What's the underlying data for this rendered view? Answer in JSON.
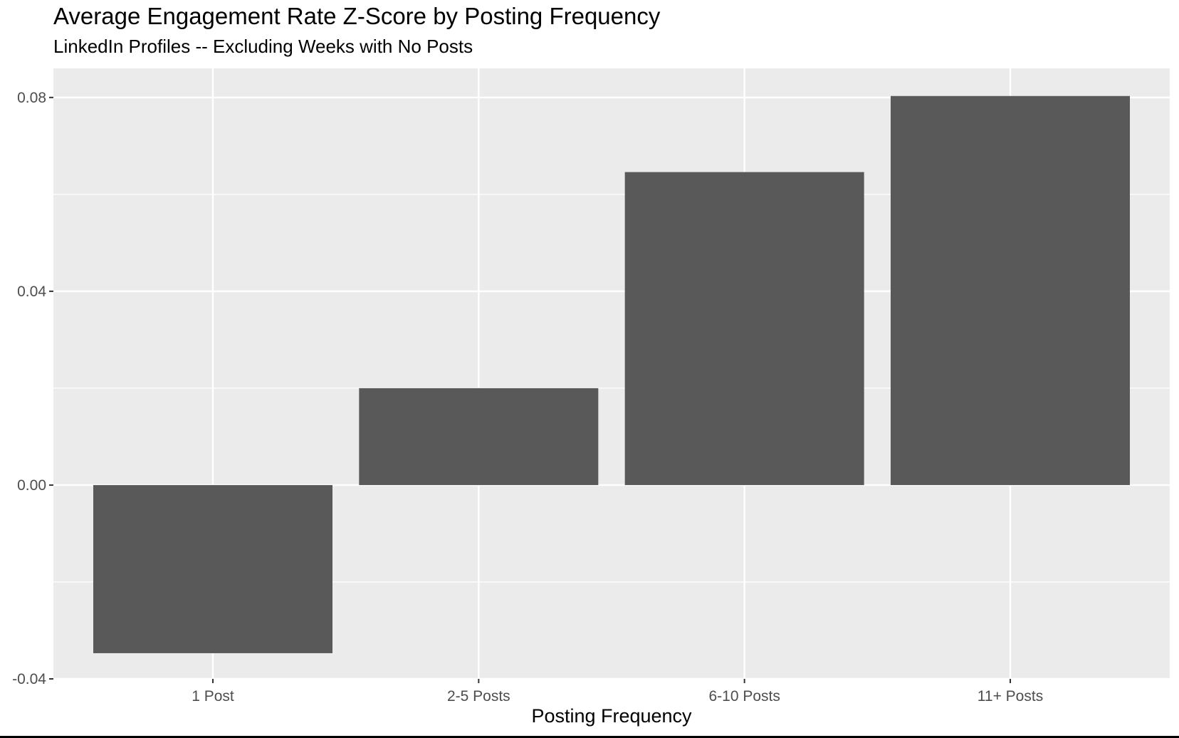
{
  "chart_data": {
    "type": "bar",
    "title": "Average Engagement Rate Z-Score by Posting Frequency",
    "subtitle": "LinkedIn Profiles -- Excluding Weeks with No Posts",
    "xlabel": "Posting Frequency",
    "ylabel": "",
    "categories": [
      "1 Post",
      "2-5 Posts",
      "6-10 Posts",
      "11+ Posts"
    ],
    "values": [
      -0.0347,
      0.02,
      0.0646,
      0.0803
    ],
    "ylim": [
      -0.04,
      0.086
    ],
    "yticks": [
      -0.04,
      0.0,
      0.04,
      0.08
    ],
    "ytick_labels": [
      "-0.04",
      "0.00",
      "0.04",
      "0.08"
    ],
    "grid": true,
    "legend": "none",
    "colors": {
      "bar": "#595959",
      "panel": "#ebebeb",
      "grid_major": "#ffffff"
    }
  }
}
